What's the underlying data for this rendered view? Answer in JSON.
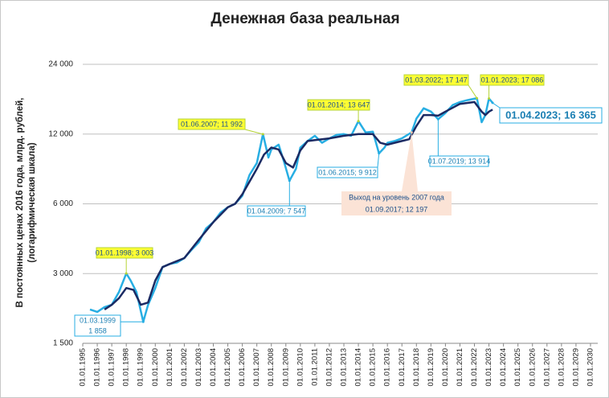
{
  "chart_data": {
    "type": "line",
    "title": "Денежная база реальная",
    "y_label": [
      "В постоянных ценах 2016 года, млрд. рублей,",
      "(логарифмическая шкала)"
    ],
    "log_scale_y": true,
    "grid": true,
    "ylim": [
      1500,
      24000
    ],
    "yticks": [
      {
        "value": 1500,
        "label": "1 500"
      },
      {
        "value": 3000,
        "label": "3 000"
      },
      {
        "value": 6000,
        "label": "6 000"
      },
      {
        "value": 12000,
        "label": "12 000"
      },
      {
        "value": 24000,
        "label": "24 000"
      }
    ],
    "xlim": [
      1995,
      2030.5
    ],
    "xticks": [
      {
        "value": 1995,
        "label": "01.01.1995"
      },
      {
        "value": 1996,
        "label": "01.01.1996"
      },
      {
        "value": 1997,
        "label": "01.01.1997"
      },
      {
        "value": 1998,
        "label": "01.01.1998"
      },
      {
        "value": 1999,
        "label": "01.01.1999"
      },
      {
        "value": 2000,
        "label": "01.01.2000"
      },
      {
        "value": 2001,
        "label": "01.01.2001"
      },
      {
        "value": 2002,
        "label": "01.01.2002"
      },
      {
        "value": 2003,
        "label": "01.01.2003"
      },
      {
        "value": 2004,
        "label": "01.01.2004"
      },
      {
        "value": 2005,
        "label": "01.01.2005"
      },
      {
        "value": 2006,
        "label": "01.01.2006"
      },
      {
        "value": 2007,
        "label": "01.01.2007"
      },
      {
        "value": 2008,
        "label": "01.01.2008"
      },
      {
        "value": 2009,
        "label": "01.01.2009"
      },
      {
        "value": 2010,
        "label": "01.01.2010"
      },
      {
        "value": 2011,
        "label": "01.01.2011"
      },
      {
        "value": 2012,
        "label": "01.01.2012"
      },
      {
        "value": 2013,
        "label": "01.01.2013"
      },
      {
        "value": 2014,
        "label": "01.01.2014"
      },
      {
        "value": 2015,
        "label": "01.01.2015"
      },
      {
        "value": 2016,
        "label": "01.01.2016"
      },
      {
        "value": 2017,
        "label": "01.01.2017"
      },
      {
        "value": 2018,
        "label": "01.01.2018"
      },
      {
        "value": 2019,
        "label": "01.01.2019"
      },
      {
        "value": 2020,
        "label": "01.01.2020"
      },
      {
        "value": 2021,
        "label": "01.01.2021"
      },
      {
        "value": 2022,
        "label": "01.01.2022"
      },
      {
        "value": 2023,
        "label": "01.01.2023"
      },
      {
        "value": 2024,
        "label": "01.01.2024"
      },
      {
        "value": 2025,
        "label": "01.01.2025"
      },
      {
        "value": 2026,
        "label": "01.01.2026"
      },
      {
        "value": 2027,
        "label": "01.01.2027"
      },
      {
        "value": 2028,
        "label": "01.01.2028"
      },
      {
        "value": 2029,
        "label": "01.01.2029"
      },
      {
        "value": 2030,
        "label": "01.01.2030"
      }
    ],
    "series": [
      {
        "color": "#27aee3",
        "width": 2.5,
        "x": [
          1995.5,
          1996,
          1996.5,
          1997,
          1997.5,
          1998,
          1998.3,
          1998.7,
          1999.17,
          1999.5,
          2000,
          2000.5,
          2001,
          2001.5,
          2002,
          2002.5,
          2003,
          2003.5,
          2004,
          2004.5,
          2005,
          2005.5,
          2006,
          2006.5,
          2007,
          2007.42,
          2007.8,
          2008,
          2008.5,
          2008.9,
          2009.25,
          2009.7,
          2010,
          2010.5,
          2011,
          2011.5,
          2012,
          2012.5,
          2013,
          2013.5,
          2014,
          2014.5,
          2015,
          2015.42,
          2015.8,
          2016,
          2016.5,
          2017,
          2017.67,
          2018,
          2018.5,
          2019,
          2019.5,
          2020,
          2020.5,
          2021,
          2021.5,
          2022.17,
          2022.5,
          2022.75,
          2023,
          2023.25
        ],
        "values": [
          2100,
          2050,
          2150,
          2200,
          2500,
          3003,
          2800,
          2500,
          1858,
          2200,
          2600,
          3200,
          3300,
          3350,
          3500,
          3800,
          4100,
          4700,
          5000,
          5500,
          5800,
          6000,
          6500,
          8000,
          9000,
          11992,
          9500,
          10300,
          10800,
          9000,
          7547,
          8500,
          10500,
          11200,
          11800,
          11000,
          11500,
          11900,
          12000,
          11800,
          13647,
          12200,
          12300,
          9912,
          10500,
          11000,
          11200,
          11500,
          12197,
          14000,
          15500,
          15000,
          13914,
          14800,
          16000,
          16500,
          16800,
          17147,
          13500,
          14500,
          17086,
          16365
        ]
      },
      {
        "color": "#1b2a63",
        "width": 2.5,
        "x": [
          1996.5,
          1997,
          1997.5,
          1998,
          1998.5,
          1999,
          1999.5,
          2000,
          2000.5,
          2001,
          2002,
          2003,
          2004,
          2005,
          2005.5,
          2006,
          2007,
          2007.5,
          2008,
          2008.5,
          2009,
          2009.5,
          2010,
          2010.5,
          2011,
          2012,
          2013,
          2014,
          2015,
          2015.5,
          2016,
          2017,
          2017.5,
          2018,
          2018.5,
          2019,
          2019.5,
          2020,
          2021,
          2022,
          2022.5,
          2022.75,
          2023,
          2023.25
        ],
        "values": [
          2100,
          2200,
          2350,
          2600,
          2550,
          2200,
          2250,
          2800,
          3200,
          3300,
          3500,
          4200,
          5000,
          5800,
          6000,
          6600,
          8500,
          9800,
          10500,
          10300,
          9000,
          8600,
          10200,
          11200,
          11300,
          11500,
          11800,
          12000,
          12000,
          11000,
          10800,
          11200,
          11400,
          13000,
          14500,
          14500,
          14400,
          15000,
          16200,
          16500,
          15000,
          14500,
          15000,
          15300
        ]
      }
    ],
    "annotations": [
      {
        "text": [
          "01.01.1998; 3 003"
        ],
        "x": 1998,
        "y": 3003
      },
      {
        "text": [
          "01.03.1999",
          "1 858"
        ],
        "x": 1999.17,
        "y": 1858
      },
      {
        "text": [
          "01.06.2007; 11 992"
        ],
        "x": 2007.42,
        "y": 11992
      },
      {
        "text": [
          "01.04.2009; 7 547"
        ],
        "x": 2009.25,
        "y": 7547
      },
      {
        "text": [
          "01.01.2014; 13 647"
        ],
        "x": 2014,
        "y": 13647
      },
      {
        "text": [
          "01.06.2015; 9 912"
        ],
        "x": 2015.42,
        "y": 9912
      },
      {
        "text": [
          "Выход на уровень 2007 года",
          "01.09.2017; 12 197"
        ],
        "x": 2017.67,
        "y": 12197
      },
      {
        "text": [
          "01.03.2022; 17 147"
        ],
        "x": 2022.17,
        "y": 17147
      },
      {
        "text": [
          "01.01.2023; 17 086"
        ],
        "x": 2023,
        "y": 17086
      },
      {
        "text": [
          "01.07.2019; 13 914"
        ],
        "x": 2019.5,
        "y": 13914
      },
      {
        "text": [
          "01.04.2023; 16 365"
        ],
        "x": 2023.25,
        "y": 16365
      }
    ]
  }
}
